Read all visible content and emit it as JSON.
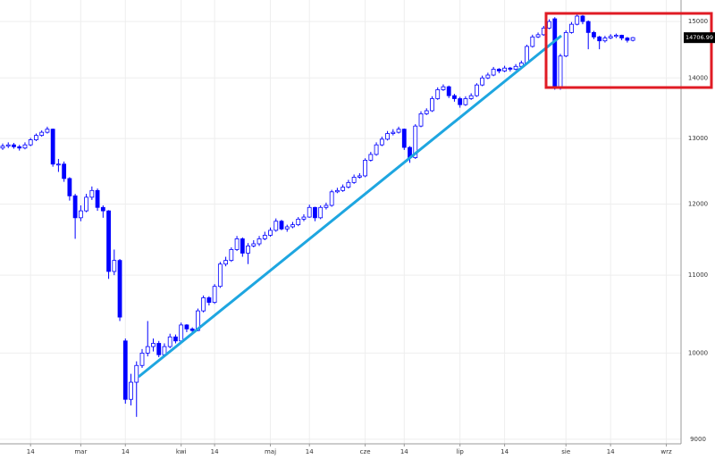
{
  "chart_data": {
    "type": "candlestick",
    "categories": [
      null,
      null,
      null,
      null,
      null,
      "14",
      null,
      null,
      null,
      null,
      null,
      null,
      null,
      null,
      "mar",
      null,
      null,
      null,
      null,
      null,
      null,
      null,
      "14",
      null,
      null,
      null,
      null,
      null,
      null,
      null,
      null,
      null,
      "kwi",
      null,
      null,
      null,
      null,
      null,
      "14",
      null,
      null,
      null,
      null,
      null,
      null,
      null,
      null,
      null,
      "maj",
      null,
      null,
      null,
      null,
      null,
      null,
      "14",
      null,
      null,
      null,
      null,
      null,
      null,
      null,
      null,
      null,
      "cze",
      null,
      null,
      null,
      null,
      null,
      null,
      "14",
      null,
      null,
      null,
      null,
      null,
      null,
      null,
      null,
      null,
      "lip",
      null,
      null,
      null,
      null,
      null,
      null,
      null,
      "14",
      null,
      null,
      null,
      null,
      null,
      null,
      null,
      null,
      null,
      null,
      "sie",
      null,
      null,
      null,
      null,
      null,
      null,
      null,
      "14",
      null,
      null,
      null,
      null,
      null,
      null,
      null,
      null,
      null,
      "wrz"
    ],
    "open": [
      12850,
      12880,
      12900,
      12870,
      12850,
      12900,
      12980,
      13050,
      13100,
      13150,
      12600,
      12600,
      12380,
      12120,
      11800,
      11900,
      12100,
      12200,
      11950,
      11900,
      11050,
      11200,
      10150,
      9450,
      9650,
      9850,
      10000,
      10080,
      10120,
      9980,
      10080,
      10200,
      10150,
      10350,
      10300,
      10280,
      10530,
      10700,
      10640,
      10850,
      11150,
      11200,
      11350,
      11500,
      11300,
      11400,
      11430,
      11500,
      11550,
      11620,
      11750,
      11640,
      11670,
      11700,
      11780,
      11810,
      11950,
      11800,
      11950,
      11980,
      12180,
      12200,
      12250,
      12320,
      12400,
      12420,
      12660,
      12750,
      12900,
      12990,
      13080,
      13100,
      13150,
      12860,
      12700,
      13200,
      13400,
      13450,
      13650,
      13800,
      13850,
      13700,
      13650,
      13550,
      13650,
      13700,
      13880,
      14000,
      14050,
      14150,
      14120,
      14170,
      14150,
      14200,
      14260,
      14550,
      14720,
      14760,
      14880,
      15050,
      13850,
      14380,
      14800,
      14950,
      15100,
      15000,
      14800,
      14720,
      14650,
      14700,
      14730,
      14750,
      14700,
      14660,
      null,
      null,
      null,
      null,
      null,
      null
    ],
    "high": [
      12920,
      12940,
      12930,
      12900,
      12940,
      13010,
      13080,
      13130,
      13190,
      13160,
      12680,
      12640,
      12400,
      12150,
      11980,
      12150,
      12260,
      12230,
      11980,
      11910,
      11350,
      11220,
      10180,
      9750,
      9900,
      10050,
      10400,
      10180,
      10150,
      10120,
      10240,
      10230,
      10380,
      10360,
      10320,
      10560,
      10730,
      10720,
      10880,
      11180,
      11250,
      11380,
      11540,
      11520,
      11440,
      11480,
      11540,
      11600,
      11660,
      11790,
      11770,
      11700,
      11740,
      11810,
      11850,
      11990,
      11960,
      11980,
      12020,
      12210,
      12240,
      12290,
      12360,
      12440,
      12460,
      12690,
      12790,
      12940,
      13030,
      13120,
      13150,
      13190,
      13160,
      12880,
      13230,
      13440,
      13490,
      13690,
      13840,
      13890,
      13870,
      13730,
      13680,
      13690,
      13740,
      13910,
      14040,
      14090,
      14190,
      14170,
      14210,
      14190,
      14240,
      14300,
      14580,
      14760,
      14800,
      14920,
      15040,
      15080,
      14420,
      14840,
      14990,
      15150,
      15120,
      15020,
      14830,
      14740,
      14740,
      14770,
      14780,
      14760,
      14720,
      14720,
      null,
      null,
      null,
      null,
      null,
      null
    ],
    "low": [
      12820,
      12850,
      12840,
      12810,
      12830,
      12880,
      12960,
      13030,
      13080,
      12560,
      12480,
      12330,
      12050,
      11500,
      11750,
      11880,
      12060,
      11900,
      11800,
      10950,
      11000,
      10400,
      9400,
      9380,
      9250,
      9820,
      9960,
      10020,
      9950,
      9960,
      10060,
      10120,
      10140,
      10260,
      10250,
      10270,
      10510,
      10600,
      10620,
      10830,
      11120,
      11180,
      11330,
      11250,
      11150,
      11380,
      11400,
      11480,
      11530,
      11600,
      11620,
      11600,
      11650,
      11680,
      11750,
      11800,
      11750,
      11780,
      11920,
      11960,
      12160,
      12180,
      12230,
      12300,
      12380,
      12400,
      12640,
      12730,
      12880,
      12970,
      13050,
      13080,
      12820,
      12620,
      12680,
      13180,
      13380,
      13430,
      13630,
      13780,
      13660,
      13600,
      13500,
      13530,
      13630,
      13680,
      13860,
      13980,
      14030,
      14080,
      14100,
      14110,
      14130,
      14180,
      14240,
      14530,
      14700,
      14740,
      14860,
      13800,
      13800,
      14360,
      14780,
      14930,
      14950,
      14500,
      14680,
      14500,
      14620,
      14680,
      14700,
      14660,
      14620,
      14640,
      null,
      null,
      null,
      null,
      null,
      null
    ],
    "close": [
      12880,
      12900,
      12870,
      12850,
      12900,
      12980,
      13050,
      13100,
      13150,
      12600,
      12600,
      12380,
      12120,
      11800,
      11900,
      12100,
      12200,
      11950,
      11900,
      11050,
      11200,
      10450,
      9450,
      9650,
      9850,
      10000,
      10080,
      10120,
      9980,
      10080,
      10200,
      10150,
      10350,
      10300,
      10280,
      10530,
      10700,
      10640,
      10850,
      11150,
      11200,
      11350,
      11500,
      11300,
      11400,
      11430,
      11500,
      11550,
      11620,
      11750,
      11640,
      11670,
      11700,
      11780,
      11810,
      11950,
      11800,
      11950,
      11980,
      12180,
      12200,
      12250,
      12320,
      12400,
      12420,
      12660,
      12750,
      12900,
      12990,
      13080,
      13100,
      13150,
      12860,
      12700,
      13200,
      13400,
      13450,
      13650,
      13800,
      13850,
      13700,
      13650,
      13550,
      13650,
      13700,
      13880,
      14000,
      14050,
      14150,
      14120,
      14170,
      14150,
      14200,
      14260,
      14550,
      14720,
      14760,
      14880,
      15000,
      13850,
      14380,
      14800,
      14950,
      15100,
      15000,
      14800,
      14720,
      14650,
      14700,
      14730,
      14750,
      14700,
      14660,
      14706.99,
      null,
      null,
      null,
      null,
      null,
      null
    ],
    "color": "#0000ff",
    "last_price_label": "14706.99",
    "ylim": [
      8950,
      15400
    ],
    "yticks": [
      9000,
      10000,
      11000,
      12000,
      13000,
      14000,
      15000
    ],
    "log_scale": true,
    "grid": true
  }
}
